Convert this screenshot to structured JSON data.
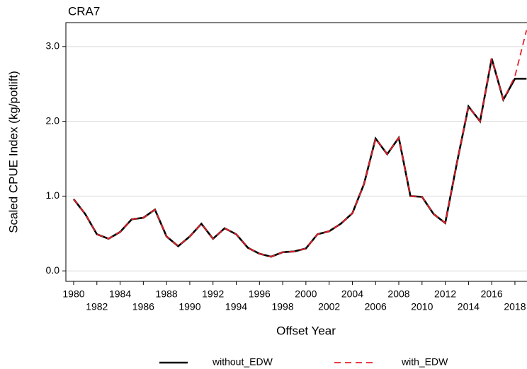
{
  "chart_data": {
    "type": "line",
    "title": "CRA7",
    "x_label": "Offset Year",
    "y_label": "Scaled CPUE Index (kg/potlift)",
    "x": [
      1980,
      1981,
      1982,
      1983,
      1984,
      1985,
      1986,
      1987,
      1988,
      1989,
      1990,
      1991,
      1992,
      1993,
      1994,
      1995,
      1996,
      1997,
      1998,
      1999,
      2000,
      2001,
      2002,
      2003,
      2004,
      2005,
      2006,
      2007,
      2008,
      2009,
      2010,
      2011,
      2012,
      2013,
      2014,
      2015,
      2016,
      2017,
      2018,
      2019
    ],
    "series": [
      {
        "name": "without_EDW",
        "color": "#000000",
        "dash": false,
        "values": [
          0.96,
          0.76,
          0.49,
          0.43,
          0.52,
          0.69,
          0.71,
          0.82,
          0.46,
          0.33,
          0.46,
          0.63,
          0.43,
          0.57,
          0.49,
          0.31,
          0.23,
          0.19,
          0.25,
          0.26,
          0.3,
          0.49,
          0.53,
          0.63,
          0.77,
          1.16,
          1.77,
          1.56,
          1.78,
          1.0,
          0.99,
          0.76,
          0.64,
          1.44,
          2.2,
          2.0,
          2.84,
          2.29,
          2.57,
          2.57
        ]
      },
      {
        "name": "with_EDW",
        "color": "#e8202a",
        "dash": true,
        "values": [
          0.96,
          0.76,
          0.49,
          0.43,
          0.52,
          0.69,
          0.71,
          0.82,
          0.46,
          0.33,
          0.46,
          0.63,
          0.43,
          0.57,
          0.49,
          0.31,
          0.23,
          0.19,
          0.25,
          0.26,
          0.3,
          0.49,
          0.53,
          0.63,
          0.77,
          1.16,
          1.77,
          1.56,
          1.78,
          1.0,
          0.99,
          0.76,
          0.64,
          1.44,
          2.2,
          2.0,
          2.84,
          2.29,
          2.6,
          3.22
        ]
      }
    ],
    "xlim": [
      1979.33,
      2019.04
    ],
    "ylim": [
      -0.14,
      3.32
    ],
    "xticks": [
      1980,
      1982,
      1984,
      1986,
      1988,
      1990,
      1992,
      1994,
      1996,
      1998,
      2000,
      2002,
      2004,
      2006,
      2008,
      2010,
      2012,
      2014,
      2016,
      2018
    ],
    "yticks": [
      {
        "value": 0,
        "label": "0.0"
      },
      {
        "value": 1,
        "label": "1.0"
      },
      {
        "value": 2,
        "label": "2.0"
      },
      {
        "value": 3,
        "label": "3.0"
      }
    ],
    "grid": true,
    "legend": "bottom"
  }
}
